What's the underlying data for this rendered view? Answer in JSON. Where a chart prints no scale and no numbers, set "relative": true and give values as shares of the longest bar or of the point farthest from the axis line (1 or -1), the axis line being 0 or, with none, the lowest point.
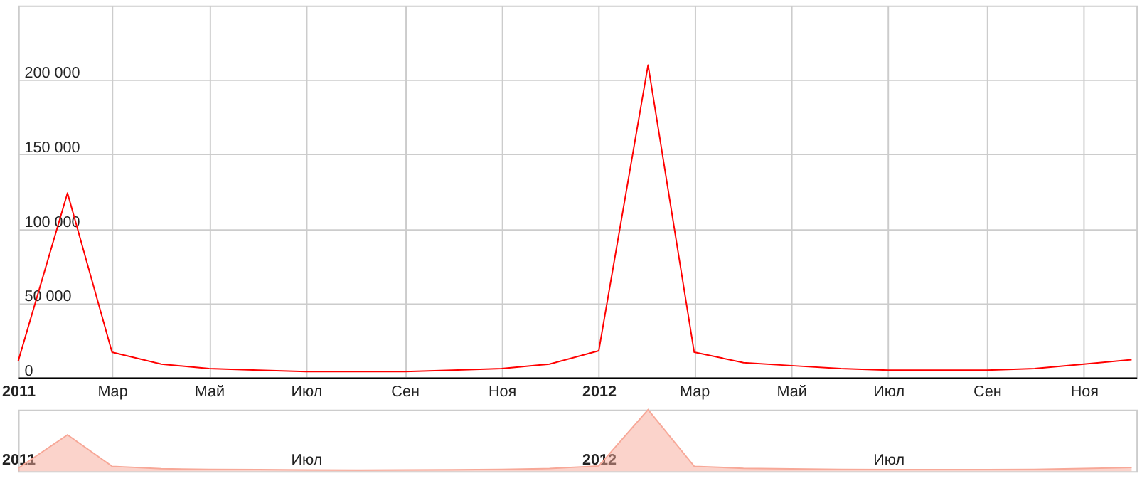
{
  "chart_data": [
    {
      "type": "line",
      "x": [
        "2011-01",
        "2011-02",
        "2011-03",
        "2011-04",
        "2011-05",
        "2011-06",
        "2011-07",
        "2011-08",
        "2011-09",
        "2011-10",
        "2011-11",
        "2011-12",
        "2012-01",
        "2012-02",
        "2012-03",
        "2012-04",
        "2012-05",
        "2012-06",
        "2012-07",
        "2012-08",
        "2012-09",
        "2012-10",
        "2012-11",
        "2012-12"
      ],
      "series": [
        {
          "color": "#ff0000",
          "values": [
            11000,
            124000,
            17000,
            9000,
            6000,
            5000,
            4000,
            4000,
            4000,
            5000,
            6000,
            9000,
            18000,
            210000,
            17000,
            10000,
            8000,
            6000,
            5000,
            5000,
            5000,
            6000,
            9000,
            12000
          ]
        }
      ],
      "xlim": [
        "2011-01-01",
        "2012-12-04"
      ],
      "xticks": [
        {
          "value": "2011-01",
          "label": "2011"
        },
        {
          "value": "2011-03",
          "label": "Мар"
        },
        {
          "value": "2011-05",
          "label": "Май"
        },
        {
          "value": "2011-07",
          "label": "Июл"
        },
        {
          "value": "2011-09",
          "label": "Сен"
        },
        {
          "value": "2011-11",
          "label": "Ноя"
        },
        {
          "value": "2012-01",
          "label": "2012"
        },
        {
          "value": "2012-03",
          "label": "Мар"
        },
        {
          "value": "2012-05",
          "label": "Май"
        },
        {
          "value": "2012-07",
          "label": "Июл"
        },
        {
          "value": "2012-09",
          "label": "Сен"
        },
        {
          "value": "2012-11",
          "label": "Ноя"
        }
      ],
      "ylim": [
        0,
        250000
      ],
      "yticks": [
        {
          "value": 0,
          "label": "0"
        },
        {
          "value": 50000,
          "label": "50 000"
        },
        {
          "value": 100000,
          "label": "100 000"
        },
        {
          "value": 150000,
          "label": "150 000"
        },
        {
          "value": 200000,
          "label": "200 000"
        }
      ],
      "grid": true,
      "line_style": "solid",
      "marker": "none"
    },
    {
      "type": "area",
      "relative": true,
      "x": [
        "2011-01",
        "2011-02",
        "2011-03",
        "2011-04",
        "2011-05",
        "2011-06",
        "2011-07",
        "2011-08",
        "2011-09",
        "2011-10",
        "2011-11",
        "2011-12",
        "2012-01",
        "2012-02",
        "2012-03",
        "2012-04",
        "2012-05",
        "2012-06",
        "2012-07",
        "2012-08",
        "2012-09",
        "2012-10",
        "2012-11",
        "2012-12"
      ],
      "series": [
        {
          "color": "#f7a898",
          "values": [
            0.05,
            0.59,
            0.08,
            0.04,
            0.03,
            0.026,
            0.02,
            0.017,
            0.02,
            0.024,
            0.03,
            0.043,
            0.086,
            1,
            0.08,
            0.048,
            0.038,
            0.03,
            0.026,
            0.026,
            0.026,
            0.03,
            0.043,
            0.06
          ]
        }
      ],
      "xlim": [
        "2011-01-01",
        "2012-12-04"
      ],
      "xticks": [
        {
          "value": "2011-01",
          "label": "2011"
        },
        {
          "value": "2011-07",
          "label": "Июл"
        },
        {
          "value": "2012-01",
          "label": "2012"
        },
        {
          "value": "2012-07",
          "label": "Июл"
        }
      ]
    }
  ]
}
